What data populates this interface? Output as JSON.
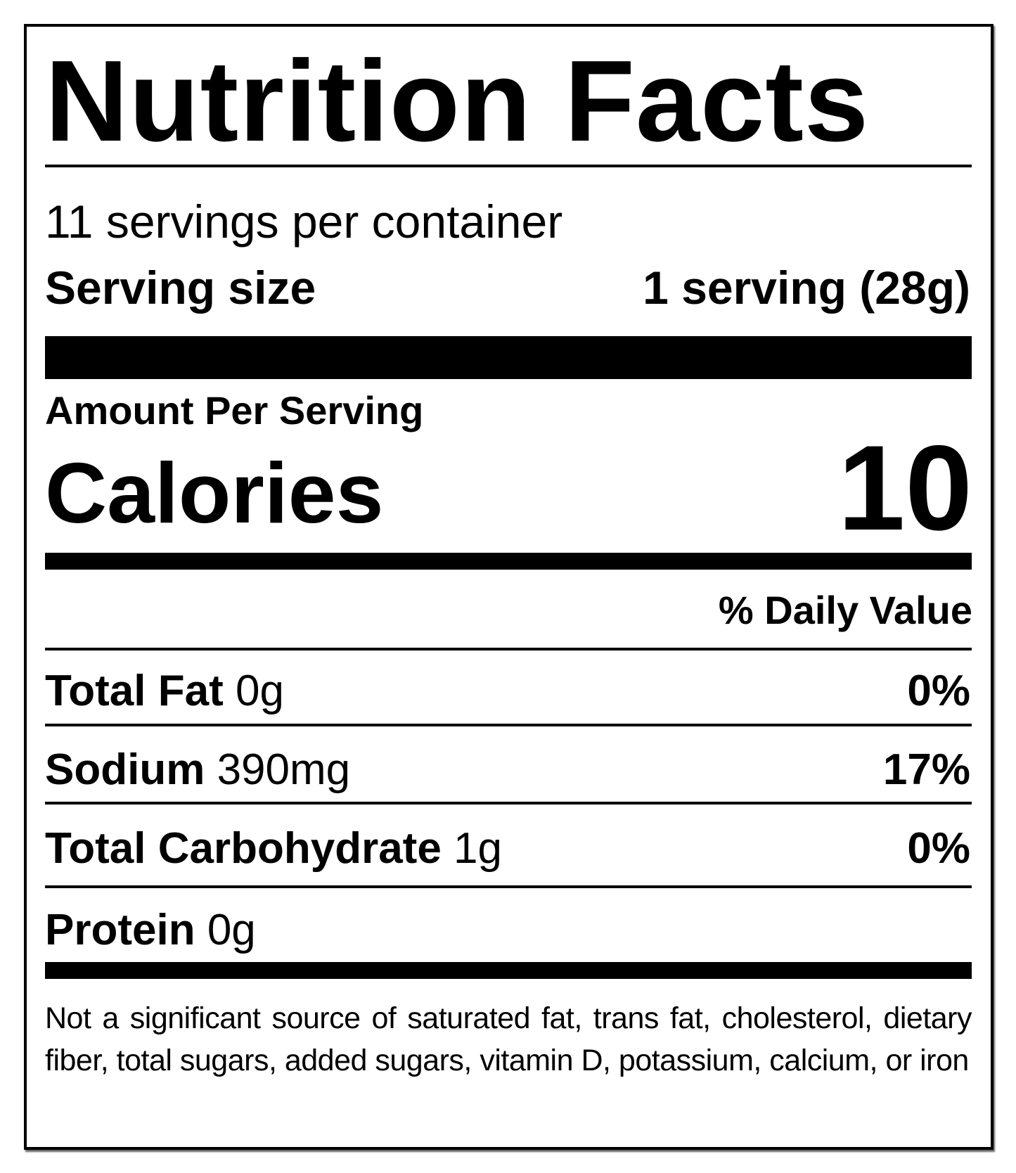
{
  "title": "Nutrition Facts",
  "servings_per_container": "11 servings per container",
  "serving_size": {
    "label": "Serving size",
    "value": "1 serving (28g)"
  },
  "amount_per_serving": "Amount Per Serving",
  "calories": {
    "label": "Calories",
    "value": "10"
  },
  "daily_value_header": "% Daily Value",
  "nutrients": [
    {
      "name": "Total Fat",
      "amount": "0g",
      "dv": "0%"
    },
    {
      "name": "Sodium",
      "amount": "390mg",
      "dv": "17%"
    },
    {
      "name": "Total Carbohydrate",
      "amount": "1g",
      "dv": "0%"
    },
    {
      "name": "Protein",
      "amount": "0g",
      "dv": ""
    }
  ],
  "footnote": "Not a significant source of saturated fat, trans fat, cholesterol, dietary fiber, total sugars, added sugars, vitamin D, potassium, calcium, or iron"
}
